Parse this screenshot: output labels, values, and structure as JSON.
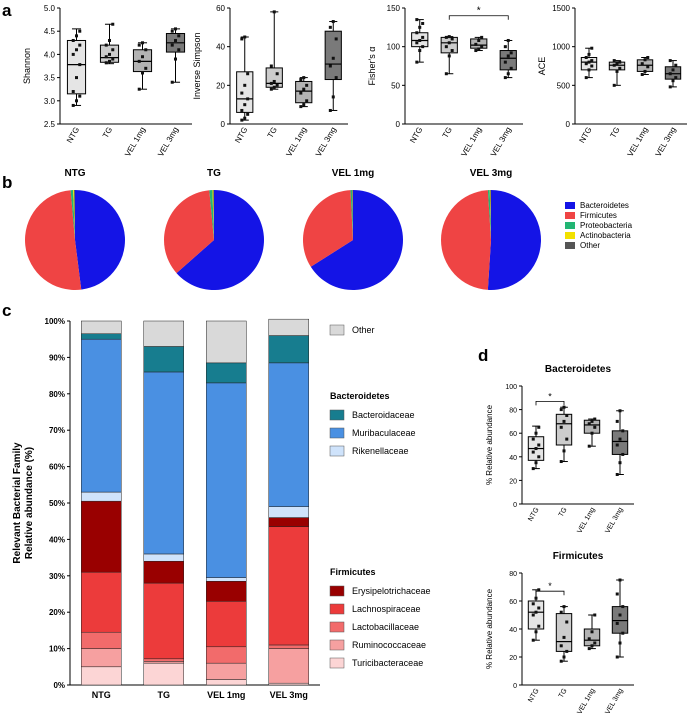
{
  "panel_labels": {
    "a": "a",
    "b": "b",
    "c": "c",
    "d": "d"
  },
  "colors": {
    "bacteroidetes": "#1414e6",
    "firmicutes": "#ef4444",
    "proteobacteria": "#22b573",
    "actinobacteria": "#f2e100",
    "other_phylum": "#555555",
    "other_family": "#d9d9d9",
    "bacteroidaceae": "#177d8f",
    "muribaculaceae": "#4a90e2",
    "rikenellaceae": "#cfe3fb",
    "erysipelotrichaceae": "#990000",
    "lachnospiraceae": "#ec3b3b",
    "lactobacillaceae": "#f26b6b",
    "ruminococcaceae": "#f6a0a0",
    "turicibacteraceae": "#fcd5d5"
  },
  "chart_data": [
    {
      "id": "shannon",
      "type": "box",
      "ylabel": "Shannon",
      "ylim": [
        2.5,
        5.0
      ],
      "yticks": [
        "2.5",
        "3.0",
        "3.5",
        "4.0",
        "4.5",
        "5.0"
      ],
      "categories": [
        "NTG",
        "TG",
        "VEL 1mg",
        "VEL 3mg"
      ],
      "fills": [
        "#e5e5e5",
        "#cccccc",
        "#b3b3b3",
        "#7a7a7a"
      ],
      "boxes": [
        {
          "min": 2.9,
          "q1": 3.15,
          "median": 3.78,
          "q3": 4.3,
          "max": 4.55,
          "points": [
            2.9,
            3.0,
            3.1,
            3.2,
            3.5,
            3.78,
            4.0,
            4.1,
            4.2,
            4.3,
            4.4,
            4.5
          ]
        },
        {
          "min": 3.8,
          "q1": 3.83,
          "median": 3.93,
          "q3": 4.2,
          "max": 4.65,
          "points": [
            3.82,
            3.85,
            3.9,
            3.95,
            4.0,
            4.1,
            4.2,
            4.3,
            4.65
          ]
        },
        {
          "min": 3.25,
          "q1": 3.63,
          "median": 3.85,
          "q3": 4.1,
          "max": 4.25,
          "points": [
            3.25,
            3.6,
            3.7,
            3.85,
            3.95,
            4.1,
            4.2,
            4.25
          ]
        },
        {
          "min": 3.4,
          "q1": 4.05,
          "median": 4.25,
          "q3": 4.45,
          "max": 4.55,
          "points": [
            3.4,
            3.9,
            4.1,
            4.2,
            4.3,
            4.4,
            4.5,
            4.55
          ]
        }
      ],
      "significance": []
    },
    {
      "id": "inverse-simpson",
      "type": "box",
      "ylabel": "Inverse Simpson",
      "ylim": [
        0,
        60
      ],
      "yticks": [
        "0",
        "20",
        "40",
        "60"
      ],
      "categories": [
        "NTG",
        "TG",
        "VEL 1mg",
        "VEL 3mg"
      ],
      "fills": [
        "#e5e5e5",
        "#cccccc",
        "#b3b3b3",
        "#7a7a7a"
      ],
      "boxes": [
        {
          "min": 2,
          "q1": 6,
          "median": 13,
          "q3": 27,
          "max": 45,
          "points": [
            2,
            3,
            5,
            7,
            10,
            13,
            16,
            20,
            26,
            44,
            45
          ]
        },
        {
          "min": 18,
          "q1": 19,
          "median": 21,
          "q3": 29,
          "max": 58,
          "points": [
            18,
            19,
            20,
            21,
            22,
            26,
            30,
            58
          ]
        },
        {
          "min": 9,
          "q1": 11,
          "median": 17,
          "q3": 22,
          "max": 24,
          "points": [
            9,
            10,
            12,
            16,
            18,
            20,
            23,
            24
          ]
        },
        {
          "min": 7,
          "q1": 23,
          "median": 31,
          "q3": 48,
          "max": 53,
          "points": [
            7,
            14,
            24,
            30,
            34,
            44,
            50,
            53
          ]
        }
      ],
      "significance": []
    },
    {
      "id": "fishers-alpha",
      "type": "box",
      "ylabel": "Fisher's α",
      "ylim": [
        0,
        150
      ],
      "yticks": [
        "0",
        "50",
        "100",
        "150"
      ],
      "categories": [
        "NTG",
        "TG",
        "VEL 1mg",
        "VEL 3mg"
      ],
      "fills": [
        "#e5e5e5",
        "#cccccc",
        "#b3b3b3",
        "#7a7a7a"
      ],
      "boxes": [
        {
          "min": 80,
          "q1": 100,
          "median": 108,
          "q3": 118,
          "max": 135,
          "points": [
            80,
            95,
            100,
            105,
            108,
            112,
            118,
            125,
            130,
            135
          ]
        },
        {
          "min": 65,
          "q1": 92,
          "median": 105,
          "q3": 112,
          "max": 113,
          "points": [
            65,
            88,
            95,
            100,
            105,
            110,
            112,
            113
          ]
        },
        {
          "min": 95,
          "q1": 98,
          "median": 102,
          "q3": 110,
          "max": 112,
          "points": [
            95,
            97,
            100,
            103,
            108,
            112
          ]
        },
        {
          "min": 60,
          "q1": 70,
          "median": 85,
          "q3": 95,
          "max": 108,
          "points": [
            60,
            65,
            72,
            80,
            88,
            92,
            100,
            108
          ]
        }
      ],
      "significance": [
        {
          "from": 1,
          "to": 3,
          "label": "*",
          "y": 140
        }
      ]
    },
    {
      "id": "ace",
      "type": "box",
      "ylabel": "ACE",
      "ylim": [
        0,
        1500
      ],
      "yticks": [
        "0",
        "500",
        "1000",
        "1500"
      ],
      "categories": [
        "NTG",
        "TG",
        "VEL 1mg",
        "VEL 3mg"
      ],
      "fills": [
        "#e5e5e5",
        "#cccccc",
        "#b3b3b3",
        "#7a7a7a"
      ],
      "boxes": [
        {
          "min": 600,
          "q1": 700,
          "median": 800,
          "q3": 860,
          "max": 980,
          "points": [
            600,
            700,
            750,
            780,
            800,
            820,
            860,
            900,
            980
          ]
        },
        {
          "min": 500,
          "q1": 700,
          "median": 760,
          "q3": 800,
          "max": 820,
          "points": [
            500,
            680,
            720,
            760,
            780,
            800,
            820
          ]
        },
        {
          "min": 640,
          "q1": 680,
          "median": 760,
          "q3": 830,
          "max": 860,
          "points": [
            640,
            680,
            740,
            780,
            830,
            860
          ]
        },
        {
          "min": 480,
          "q1": 580,
          "median": 650,
          "q3": 740,
          "max": 820,
          "points": [
            480,
            560,
            600,
            650,
            700,
            760,
            820
          ]
        }
      ],
      "significance": []
    },
    {
      "id": "phylum-pies",
      "type": "pie",
      "groups": [
        "NTG",
        "TG",
        "VEL 1mg",
        "VEL 3mg"
      ],
      "labels": [
        "Bacteroidetes",
        "Firmicutes",
        "Proteobacteria",
        "Actinobacteria",
        "Other"
      ],
      "values": [
        [
          48.0,
          50.6,
          0.8,
          0.3,
          0.3
        ],
        [
          63.5,
          35.0,
          1.0,
          0.3,
          0.2
        ],
        [
          66.0,
          33.2,
          0.5,
          0.1,
          0.2
        ],
        [
          51.0,
          48.0,
          0.6,
          0.2,
          0.2
        ]
      ]
    },
    {
      "id": "family-stacked-bars",
      "type": "bar",
      "stacked": true,
      "ylabel_lines": [
        "Relevant Bacterial Family",
        "Relative abundance (%)"
      ],
      "ylim": [
        0,
        100
      ],
      "yticks": [
        "0%",
        "10%",
        "20%",
        "30%",
        "40%",
        "50%",
        "60%",
        "70%",
        "80%",
        "90%",
        "100%"
      ],
      "categories": [
        "NTG",
        "TG",
        "VEL 1mg",
        "VEL 3mg"
      ],
      "series": [
        {
          "name": "Turicibacteraceae",
          "key": "turicibacteraceae",
          "values": [
            5,
            6,
            1.5,
            0.5
          ]
        },
        {
          "name": "Ruminococcaceae",
          "key": "ruminococcaceae",
          "values": [
            5,
            0.5,
            4.5,
            9.5
          ]
        },
        {
          "name": "Lactobacillaceae",
          "key": "lactobacillaceae",
          "values": [
            4.5,
            0.7,
            4.5,
            1
          ]
        },
        {
          "name": "Lachnospiraceae",
          "key": "lachnospiraceae",
          "values": [
            16.5,
            20.8,
            12.5,
            32.5
          ]
        },
        {
          "name": "Erysipelotrichaceae",
          "key": "erysipelotrichaceae",
          "values": [
            19.5,
            6,
            5.5,
            2.5
          ]
        },
        {
          "name": "Rikenellaceae",
          "key": "rikenellaceae",
          "values": [
            2.5,
            2,
            1,
            3
          ]
        },
        {
          "name": "Muribaculaceae",
          "key": "muribaculaceae",
          "values": [
            42,
            50,
            53.5,
            39.5
          ]
        },
        {
          "name": "Bacteroidaceae",
          "key": "bacteroidaceae",
          "values": [
            1.5,
            7,
            5.5,
            7.5
          ]
        },
        {
          "name": "Other",
          "key": "other_family",
          "values": [
            3.5,
            7,
            11.5,
            4.5
          ]
        }
      ],
      "legend": {
        "other_label": "Other",
        "bacteroidetes_title": "Bacteroidetes",
        "bacteroidetes_items": [
          "Bacteroidaceae",
          "Muribaculaceae",
          "Rikenellaceae"
        ],
        "firmicutes_title": "Firmicutes",
        "firmicutes_items": [
          "Erysipelotrichaceae",
          "Lachnospiraceae",
          "Lactobacillaceae",
          "Ruminococcaceae",
          "Turicibacteraceae"
        ]
      }
    },
    {
      "id": "bacteroidetes-box",
      "type": "box",
      "title": "Bacteroidetes",
      "ylabel": "% Relative abundance",
      "ylim": [
        0,
        100
      ],
      "yticks": [
        "0",
        "20",
        "40",
        "60",
        "80",
        "100"
      ],
      "categories": [
        "NTG",
        "TG",
        "VEL 1mg",
        "VEL 3mg"
      ],
      "fills": [
        "#e5e5e5",
        "#cccccc",
        "#b3b3b3",
        "#7a7a7a"
      ],
      "boxes": [
        {
          "min": 30,
          "q1": 37,
          "median": 47,
          "q3": 57,
          "max": 66,
          "points": [
            30,
            35,
            40,
            44,
            47,
            50,
            55,
            60,
            65
          ]
        },
        {
          "min": 36,
          "q1": 50,
          "median": 68,
          "q3": 76,
          "max": 82,
          "points": [
            36,
            45,
            55,
            65,
            70,
            75,
            80,
            82
          ]
        },
        {
          "min": 49,
          "q1": 60,
          "median": 67,
          "q3": 71,
          "max": 72,
          "points": [
            49,
            60,
            65,
            68,
            70,
            72
          ]
        },
        {
          "min": 25,
          "q1": 42,
          "median": 53,
          "q3": 62,
          "max": 79,
          "points": [
            25,
            35,
            42,
            50,
            55,
            62,
            70,
            79
          ]
        }
      ],
      "significance": [
        {
          "from": 0,
          "to": 1,
          "label": "*",
          "y": 87
        }
      ]
    },
    {
      "id": "firmicutes-box",
      "type": "box",
      "title": "Firmicutes",
      "ylabel": "% Relative abundance",
      "ylim": [
        0,
        80
      ],
      "yticks": [
        "0",
        "20",
        "40",
        "60",
        "80"
      ],
      "categories": [
        "NTG",
        "TG",
        "VEL 1mg",
        "VEL 3mg"
      ],
      "fills": [
        "#e5e5e5",
        "#cccccc",
        "#b3b3b3",
        "#7a7a7a"
      ],
      "boxes": [
        {
          "min": 32,
          "q1": 40,
          "median": 52,
          "q3": 60,
          "max": 68,
          "points": [
            32,
            38,
            42,
            50,
            52,
            55,
            58,
            62,
            68
          ]
        },
        {
          "min": 17,
          "q1": 24,
          "median": 31,
          "q3": 51,
          "max": 56,
          "points": [
            17,
            20,
            24,
            28,
            34,
            45,
            52,
            56
          ]
        },
        {
          "min": 26,
          "q1": 28,
          "median": 32,
          "q3": 40,
          "max": 50,
          "points": [
            26,
            28,
            30,
            33,
            38,
            50
          ]
        },
        {
          "min": 20,
          "q1": 37,
          "median": 46,
          "q3": 56,
          "max": 75,
          "points": [
            20,
            30,
            37,
            44,
            50,
            56,
            65,
            75
          ]
        }
      ],
      "significance": [
        {
          "from": 0,
          "to": 1,
          "label": "*",
          "y": 67
        }
      ]
    }
  ]
}
